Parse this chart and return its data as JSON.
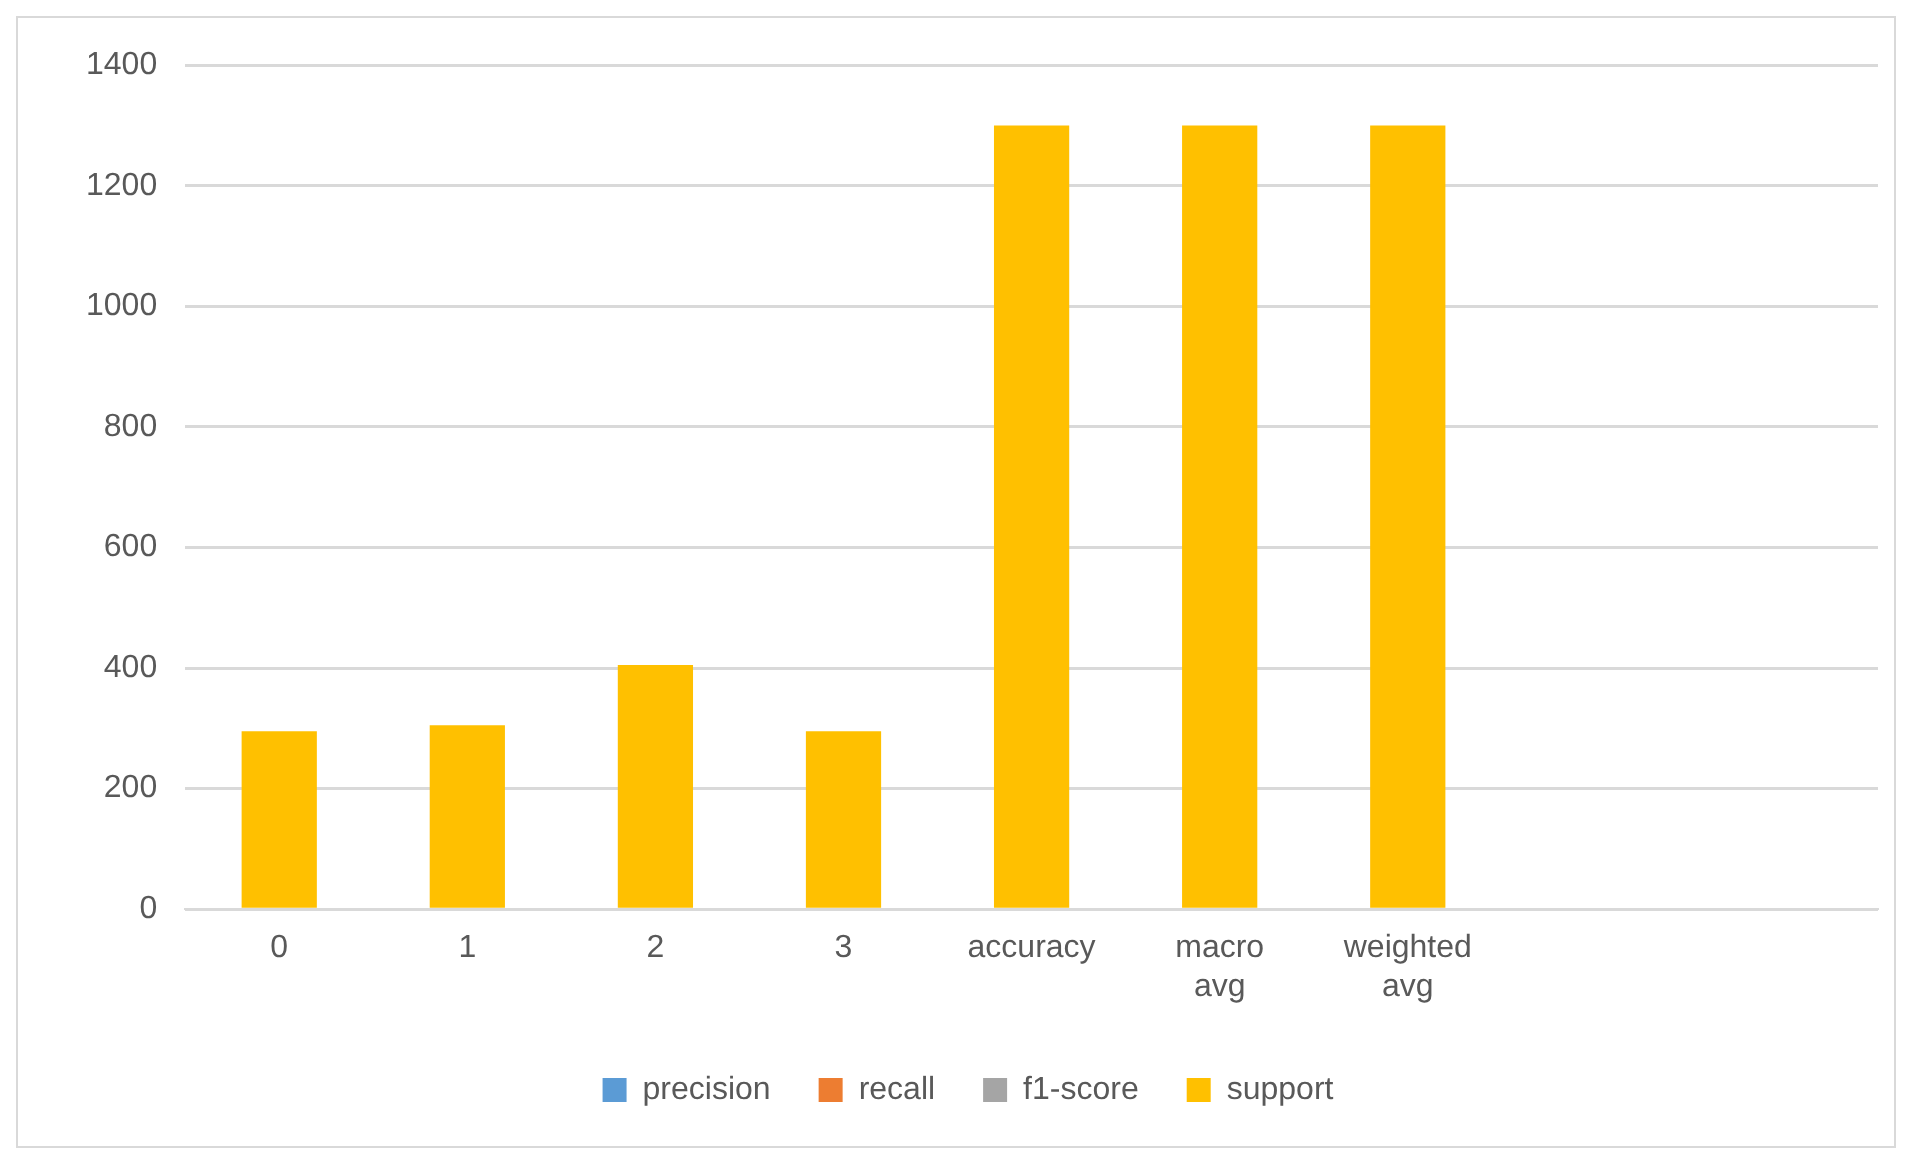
{
  "chart_data": {
    "type": "bar",
    "categories": [
      "0",
      "1",
      "2",
      "3",
      "accuracy",
      "macro avg",
      "weighted avg",
      null,
      null
    ],
    "series": [
      {
        "name": "precision",
        "color": "#5b9bd5",
        "values": [
          0,
          0,
          0,
          0,
          0,
          0,
          0,
          null,
          null
        ]
      },
      {
        "name": "recall",
        "color": "#ed7d31",
        "values": [
          0,
          0,
          0,
          0,
          0,
          0,
          0,
          null,
          null
        ]
      },
      {
        "name": "f1-score",
        "color": "#a5a5a5",
        "values": [
          0,
          0,
          0,
          0,
          0,
          0,
          0,
          null,
          null
        ]
      },
      {
        "name": "support",
        "color": "#ffc000",
        "values": [
          295,
          305,
          405,
          295,
          1300,
          1300,
          1300,
          null,
          null
        ]
      }
    ],
    "ylim": [
      0,
      1400
    ],
    "yticks": [
      0,
      200,
      400,
      600,
      800,
      1000,
      1200,
      1400
    ],
    "grid": "y",
    "legend": "bottom"
  }
}
